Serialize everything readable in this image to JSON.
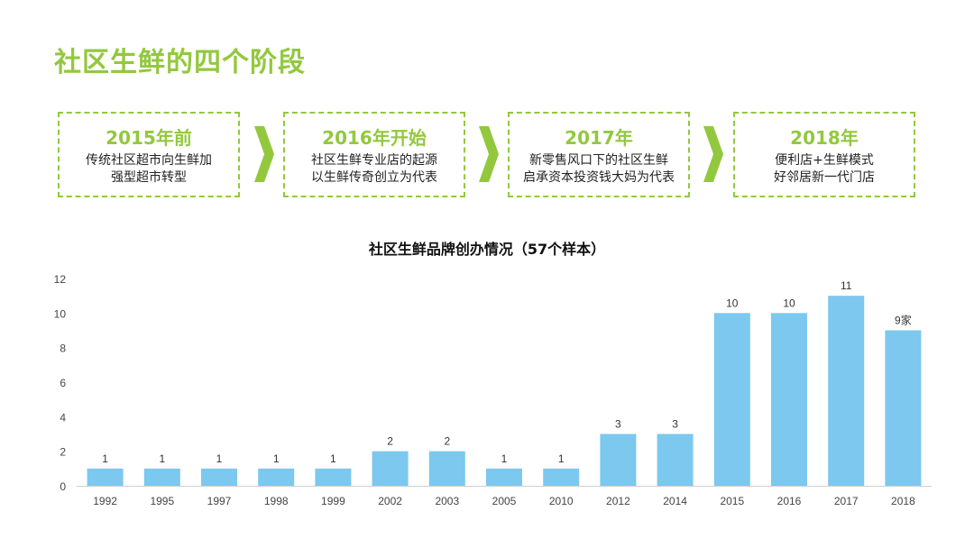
{
  "page": {
    "title": "社区生鲜的四个阶段"
  },
  "stages": [
    {
      "year": "2015年前",
      "line1": "传统社区超市向生鲜加",
      "line2": "强型超市转型"
    },
    {
      "year": "2016年开始",
      "line1": "社区生鲜专业店的起源",
      "line2": "以生鲜传奇创立为代表"
    },
    {
      "year": "2017年",
      "line1": "新零售风口下的社区生鲜",
      "line2": "启承资本投资钱大妈为代表"
    },
    {
      "year": "2018年",
      "line1": "便利店+生鲜模式",
      "line2": "好邻居新一代门店"
    }
  ],
  "colors": {
    "accent_green": "#93c83e",
    "bar_blue": "#7cc8ee"
  },
  "chart_data": {
    "type": "bar",
    "title": "社区生鲜品牌创办情况（57个样本）",
    "categories": [
      "1992",
      "1995",
      "1997",
      "1998",
      "1999",
      "2002",
      "2003",
      "2005",
      "2010",
      "2012",
      "2014",
      "2015",
      "2016",
      "2017",
      "2018"
    ],
    "values": [
      1,
      1,
      1,
      1,
      1,
      2,
      2,
      1,
      1,
      3,
      3,
      10,
      10,
      11,
      9
    ],
    "data_labels": [
      "1",
      "1",
      "1",
      "1",
      "1",
      "2",
      "2",
      "1",
      "1",
      "3",
      "3",
      "10",
      "10",
      "11",
      "9家"
    ],
    "yticks": [
      "0",
      "2",
      "4",
      "6",
      "8",
      "10",
      "12"
    ],
    "ylim": [
      0,
      12
    ],
    "grid": false,
    "xlabel": "",
    "ylabel": ""
  }
}
